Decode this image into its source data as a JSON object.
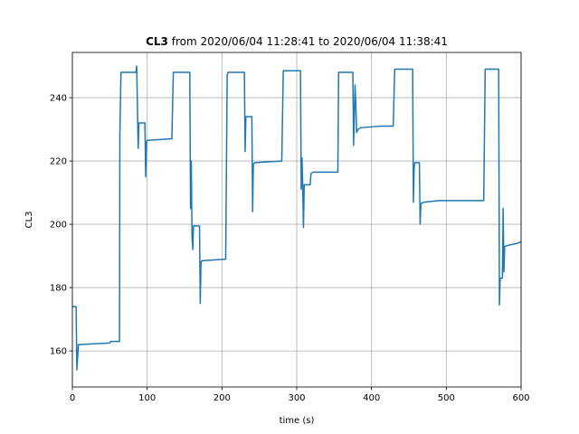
{
  "chart_data": {
    "type": "line",
    "title": {
      "bold": "CL3",
      "text": "from 2020/06/04 11:28:41 to 2020/06/04 11:38:41"
    },
    "xlabel": "time (s)",
    "ylabel": "CL3",
    "x": [
      0,
      5,
      6,
      8,
      50,
      51,
      63,
      63.5,
      65,
      85,
      86,
      88,
      89,
      97,
      98,
      99,
      100,
      133,
      135,
      157,
      158,
      159,
      160,
      161,
      162,
      170,
      171,
      172,
      173,
      205,
      207,
      208,
      230,
      231,
      232,
      240,
      241,
      242,
      244,
      280,
      282,
      305,
      306,
      307,
      308,
      309,
      310,
      318,
      319,
      322,
      355,
      356,
      375,
      376,
      378,
      379,
      380,
      382,
      385,
      410,
      429,
      431,
      455,
      456,
      457,
      458,
      464,
      465,
      466,
      470,
      490,
      550,
      552,
      570,
      571,
      572,
      575,
      576,
      577,
      578,
      585,
      595,
      600
    ],
    "values": [
      174,
      174,
      154,
      162,
      162.5,
      163,
      163,
      228,
      248,
      248,
      250,
      224,
      232,
      232,
      215,
      226,
      226.5,
      227,
      248,
      248,
      205,
      220,
      196,
      192,
      199.5,
      199.5,
      175,
      188,
      188.5,
      189,
      247,
      248,
      248,
      223,
      234,
      234,
      204,
      219,
      219.5,
      220,
      248.5,
      248.5,
      211,
      221,
      212,
      199,
      212.5,
      212.5,
      216,
      216.5,
      216.5,
      248,
      248,
      225,
      244,
      238,
      229,
      230,
      230.5,
      231,
      231,
      249,
      249,
      207,
      218,
      219.5,
      219.5,
      200,
      206.5,
      207,
      207.5,
      207.5,
      249,
      249,
      174.5,
      183,
      183,
      205,
      185,
      193,
      193.5,
      194,
      194.5
    ],
    "color": "#1f77b4",
    "xlim": [
      0,
      600
    ],
    "xticks": [
      0,
      100,
      200,
      300,
      400,
      500,
      600
    ],
    "ylim": [
      148.6,
      254.3
    ],
    "yticks": [
      160,
      180,
      200,
      220,
      240
    ],
    "grid": true
  }
}
